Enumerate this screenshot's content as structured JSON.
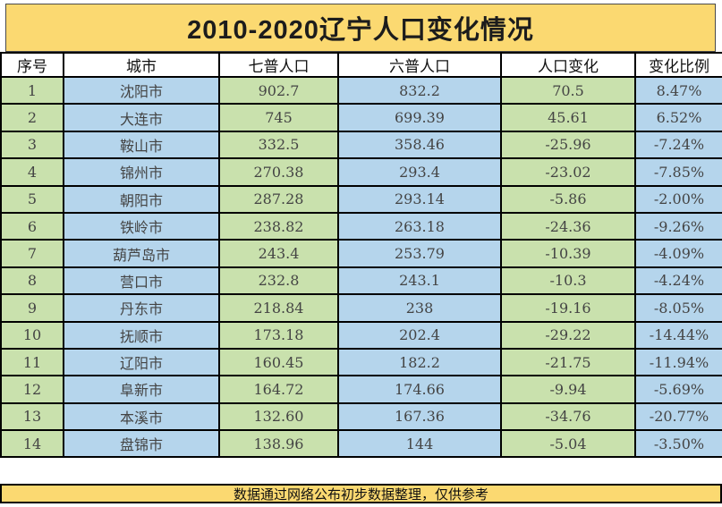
{
  "title": "2010-2020辽宁人口变化情况",
  "footer": "数据通过网络公布初步数据整理，仅供参考",
  "colors": {
    "title_background": "#fbd971",
    "footer_background": "#fbd971",
    "green_cell": "#c9e1ad",
    "blue_cell": "#b5d5ec",
    "header_background": "#ffffff",
    "data_text": "#444444",
    "red_serial_text": "#d84a32",
    "border": "#000000"
  },
  "chart_data": {
    "type": "table",
    "title": "2010-2020辽宁人口变化情况",
    "columns": [
      "序号",
      "城市",
      "七普人口",
      "六普人口",
      "人口变化",
      "变化比例"
    ],
    "rows": [
      [
        "1",
        "沈阳市",
        "902.7",
        "832.2",
        "70.5",
        "8.47%"
      ],
      [
        "2",
        "大连市",
        "745",
        "699.39",
        "45.61",
        "6.52%"
      ],
      [
        "3",
        "鞍山市",
        "332.5",
        "358.46",
        "-25.96",
        "-7.24%"
      ],
      [
        "4",
        "锦州市",
        "270.38",
        "293.4",
        "-23.02",
        "-7.85%"
      ],
      [
        "5",
        "朝阳市",
        "287.28",
        "293.14",
        "-5.86",
        "-2.00%"
      ],
      [
        "6",
        "铁岭市",
        "238.82",
        "263.18",
        "-24.36",
        "-9.26%"
      ],
      [
        "7",
        "葫芦岛市",
        "243.4",
        "253.79",
        "-10.39",
        "-4.09%"
      ],
      [
        "8",
        "营口市",
        "232.8",
        "243.1",
        "-10.3",
        "-4.24%"
      ],
      [
        "9",
        "丹东市",
        "218.84",
        "238",
        "-19.16",
        "-8.05%"
      ],
      [
        "10",
        "抚顺市",
        "173.18",
        "202.4",
        "-29.22",
        "-14.44%"
      ],
      [
        "11",
        "辽阳市",
        "160.45",
        "182.2",
        "-21.75",
        "-11.94%"
      ],
      [
        "12",
        "阜新市",
        "164.72",
        "174.66",
        "-9.94",
        "-5.69%"
      ],
      [
        "13",
        "本溪市",
        "132.60",
        "167.36",
        "-34.76",
        "-20.77%"
      ],
      [
        "14",
        "盘锦市",
        "138.96",
        "144",
        "-5.04",
        "-3.50%"
      ]
    ],
    "red_serial_rows": [
      "5",
      "10"
    ],
    "footer_note": "数据通过网络公布初步数据整理，仅供参考"
  }
}
